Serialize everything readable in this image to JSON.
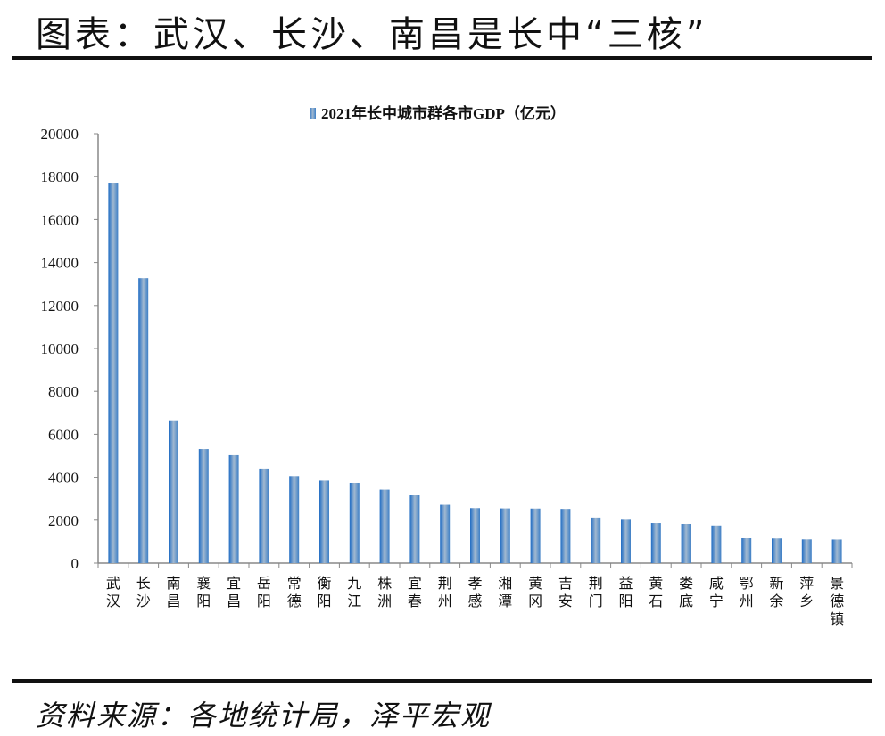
{
  "header": {
    "title": "图表：武汉、长沙、南昌是长中“三核”"
  },
  "footer": {
    "source": "资料来源：各地统计局，泽平宏观"
  },
  "colors": {
    "bar": "#4a86c8",
    "bar_mid": "#9fb7d0"
  },
  "chart_data": {
    "type": "bar",
    "title": "",
    "legend": [
      {
        "label": "2021年长中城市群各市GDP（亿元）"
      }
    ],
    "legend_position": "top",
    "xlabel": "",
    "ylabel": "",
    "ylim": [
      0,
      20000
    ],
    "yticks": [
      0,
      2000,
      4000,
      6000,
      8000,
      10000,
      12000,
      14000,
      16000,
      18000,
      20000
    ],
    "grid": false,
    "categories": [
      "武汉",
      "长沙",
      "南昌",
      "襄阳",
      "宜昌",
      "岳阳",
      "常德",
      "衡阳",
      "九江",
      "株洲",
      "宜春",
      "荆州",
      "孝感",
      "湘潭",
      "黄冈",
      "吉安",
      "荆门",
      "益阳",
      "黄石",
      "娄底",
      "咸宁",
      "鄂州",
      "新余",
      "萍乡",
      "景德镇"
    ],
    "series": [
      {
        "name": "2021年长中城市群各市GDP（亿元）",
        "values": [
          17717,
          13271,
          6651,
          5309,
          5023,
          4402,
          4054,
          3841,
          3735,
          3420,
          3191,
          2716,
          2562,
          2548,
          2541,
          2525,
          2121,
          2019,
          1866,
          1826,
          1752,
          1162,
          1152,
          1108,
          1102
        ]
      }
    ]
  }
}
